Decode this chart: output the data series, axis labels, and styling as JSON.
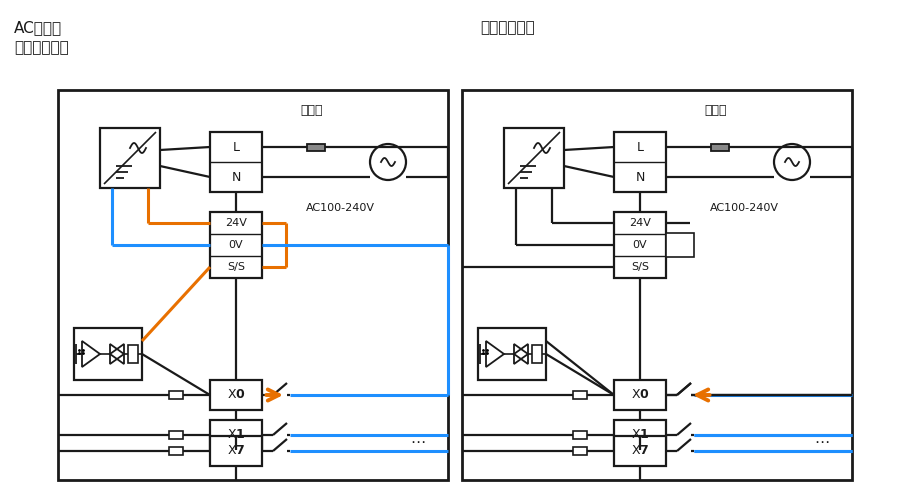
{
  "title_left_line1": "AC电源型",
  "title_left_line2": "漏型输入接线",
  "title_right": "源型输入接线",
  "label_baoxiansi": "保险丝",
  "label_ac": "AC100-240V",
  "color_black": "#1a1a1a",
  "color_orange": "#E87000",
  "color_blue": "#1E8FFF",
  "color_bg": "#FFFFFF",
  "lw_border": 2.0,
  "lw_wire": 1.6,
  "lw_color": 2.2,
  "lw_thin": 1.2
}
